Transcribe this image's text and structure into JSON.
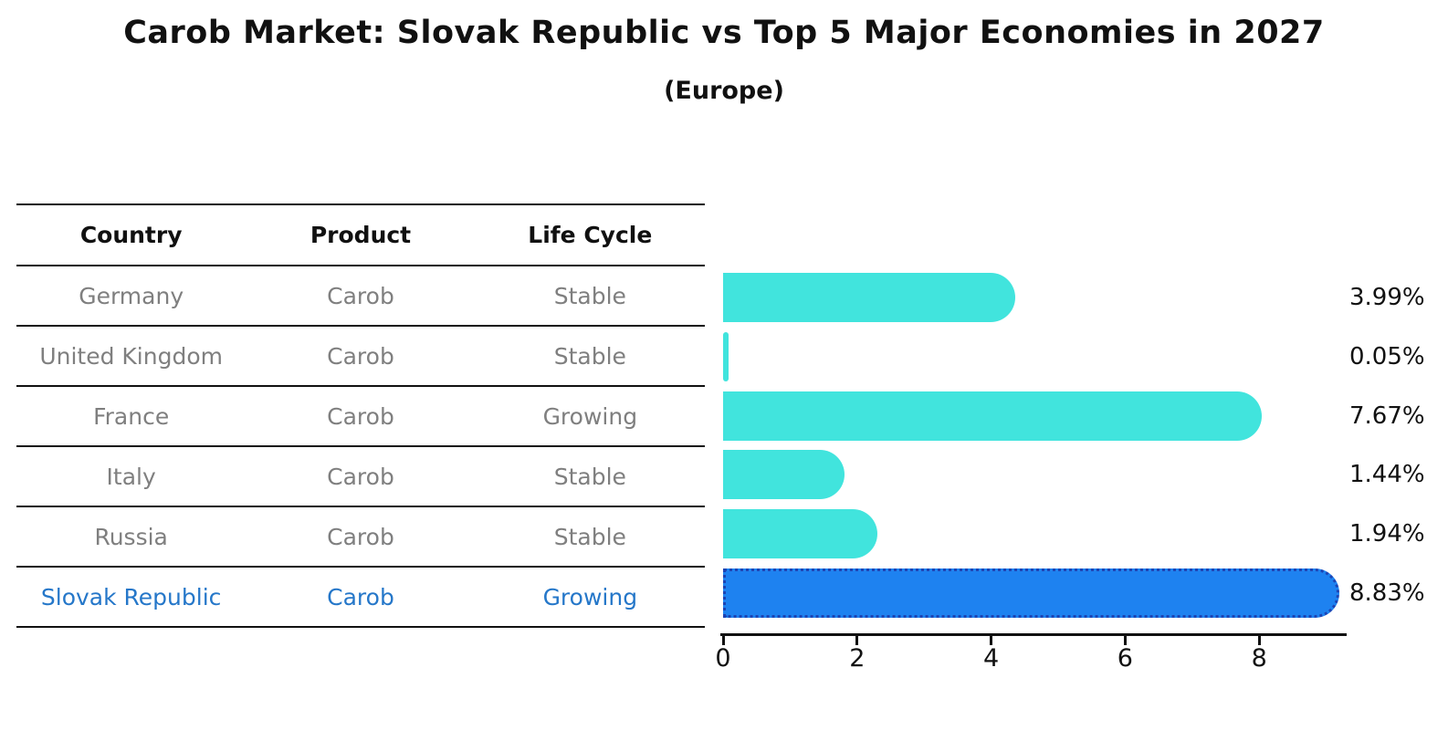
{
  "title": "Carob Market: Slovak Republic vs Top 5 Major Economies in 2027",
  "subtitle": "(Europe)",
  "colors": {
    "bar_default": "#41E4DD",
    "bar_highlight": "#1E82F0",
    "bar_highlight_border": "#1C44B4",
    "table_text": "#7f7f7f",
    "table_highlight_text": "#2577C9",
    "axis_and_labels": "#111111"
  },
  "table": {
    "headers": [
      "Country",
      "Product",
      "Life Cycle"
    ],
    "rows": [
      {
        "country": "Germany",
        "product": "Carob",
        "life_cycle": "Stable",
        "highlight": false
      },
      {
        "country": "United Kingdom",
        "product": "Carob",
        "life_cycle": "Stable",
        "highlight": false
      },
      {
        "country": "France",
        "product": "Carob",
        "life_cycle": "Growing",
        "highlight": false
      },
      {
        "country": "Italy",
        "product": "Carob",
        "life_cycle": "Stable",
        "highlight": false
      },
      {
        "country": "Russia",
        "product": "Carob",
        "life_cycle": "Stable",
        "highlight": false
      },
      {
        "country": "Slovak Republic",
        "product": "Carob",
        "life_cycle": "Growing",
        "highlight": true
      }
    ]
  },
  "chart_data": {
    "type": "bar",
    "orientation": "horizontal",
    "title": "Carob Market: Slovak Republic vs Top 5 Major Economies in 2027",
    "subtitle": "(Europe)",
    "categories": [
      "Germany",
      "United Kingdom",
      "France",
      "Italy",
      "Russia",
      "Slovak Republic"
    ],
    "values": [
      3.99,
      0.05,
      7.67,
      1.44,
      1.94,
      8.83
    ],
    "value_labels": [
      "3.99%",
      "0.05%",
      "7.67%",
      "1.44%",
      "1.94%",
      "8.83%"
    ],
    "highlight_index": 5,
    "x_ticks": [
      0,
      2,
      4,
      6,
      8
    ],
    "x_tick_labels": [
      "0",
      "2",
      "4",
      "6",
      "8"
    ],
    "xlim": [
      0,
      9.3
    ],
    "grid": false,
    "legend": false
  }
}
